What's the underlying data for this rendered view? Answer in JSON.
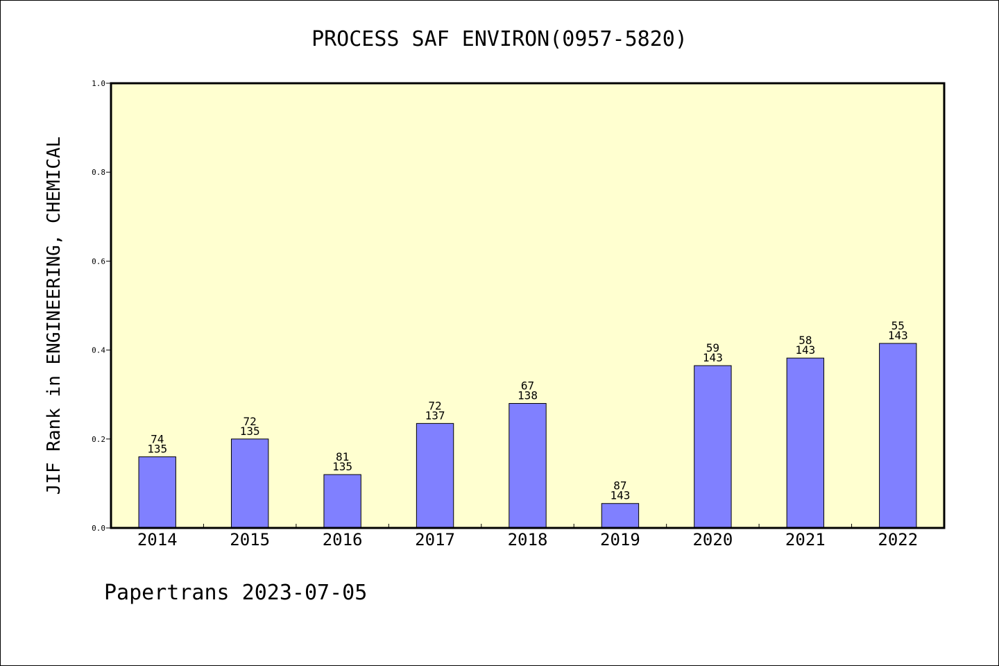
{
  "chart_data": {
    "type": "bar",
    "title": "PROCESS SAF ENVIRON(0957-5820)",
    "ylabel": "JIF Rank in ENGINEERING, CHEMICAL",
    "xlabel": "",
    "categories": [
      "2014",
      "2015",
      "2016",
      "2017",
      "2018",
      "2019",
      "2020",
      "2021",
      "2022"
    ],
    "values": [
      0.16,
      0.2,
      0.12,
      0.235,
      0.28,
      0.055,
      0.365,
      0.382,
      0.415
    ],
    "rank": [
      "74",
      "72",
      "81",
      "72",
      "67",
      "87",
      "59",
      "58",
      "55"
    ],
    "total": [
      "135",
      "135",
      "135",
      "137",
      "138",
      "143",
      "143",
      "143",
      "143"
    ],
    "ylim": [
      0,
      1.0
    ],
    "yticks": [
      "0.0",
      "0.2",
      "0.4",
      "0.6",
      "0.8",
      "1.0"
    ],
    "grid": false,
    "colors": {
      "bar": "#8080ff",
      "plot_bg": "#ffffd0",
      "frame": "#000000"
    }
  },
  "footer": "Papertrans 2023-07-05"
}
